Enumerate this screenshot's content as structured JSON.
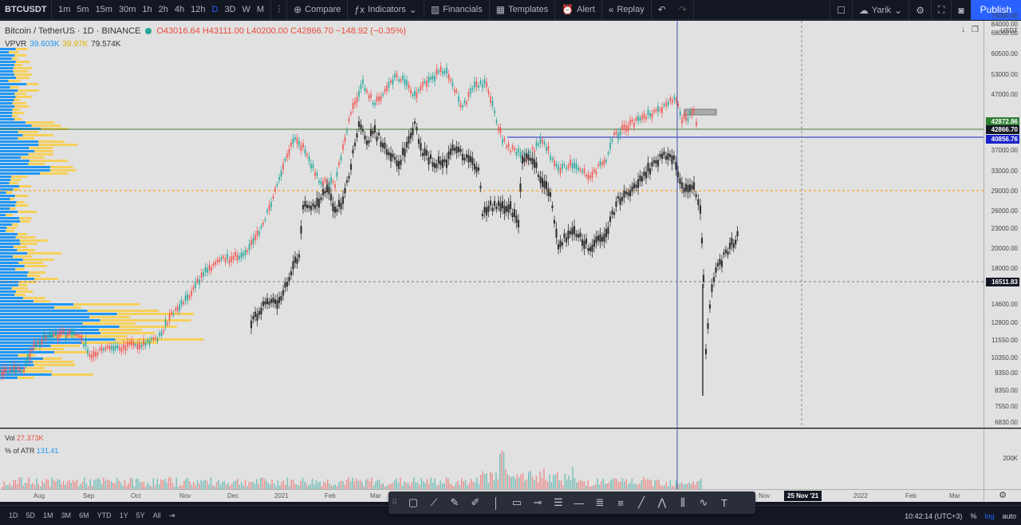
{
  "toolbar": {
    "symbol": "BTCUSDT",
    "intervals": [
      "1m",
      "5m",
      "15m",
      "30m",
      "1h",
      "2h",
      "4h",
      "12h",
      "D",
      "3D",
      "W",
      "M"
    ],
    "active_interval": "D",
    "compare": "Compare",
    "indicators": "Indicators",
    "financials": "Financials",
    "templates": "Templates",
    "alert": "Alert",
    "replay": "Replay",
    "user": "Yarik",
    "publish": "Publish"
  },
  "legend": {
    "title": "Bitcoin / TetherUS · 1D · BINANCE",
    "ohlc": "O43016.64  H43111.00  L40200.00  C42866.70  −148.92 (−0.35%)",
    "vpvr_label": "VPVR",
    "vpvr_a": "39.603K",
    "vpvr_b": "39.97K",
    "vpvr_c": "79.574K"
  },
  "price_axis": {
    "unit": "USDT",
    "top_label": "84000.00",
    "ticks": [
      "76000.00",
      "68000.00",
      "60500.00",
      "53000.00",
      "47000.00",
      "37000.00",
      "33000.00",
      "29000.00",
      "26000.00",
      "23000.00",
      "20000.00",
      "18000.00",
      "14600.00",
      "12800.00",
      "11550.00",
      "10350.00",
      "9350.00",
      "8350.00",
      "7550.00",
      "6830.00"
    ],
    "tags": [
      {
        "text": "42872.86",
        "color": "#2e7d32"
      },
      {
        "text": "42866.70",
        "color": "#131722"
      },
      {
        "text": "40856.76",
        "color": "#1a23c9"
      },
      {
        "text": "16511.83",
        "color": "#131722"
      }
    ]
  },
  "volume": {
    "vol_label": "Vol",
    "vol_value": "27.373K",
    "atr_label": "% of ATR",
    "atr_value": "131.41",
    "axis_label": "200K"
  },
  "time_axis": {
    "labels": [
      "Aug",
      "Sep",
      "Oct",
      "Nov",
      "Dec",
      "2021",
      "Feb",
      "Mar",
      "Nov",
      "2022",
      "Feb",
      "Mar"
    ],
    "current": "25 Nov '21"
  },
  "bottombar": {
    "ranges": [
      "1D",
      "5D",
      "1M",
      "3M",
      "6M",
      "YTD",
      "1Y",
      "5Y",
      "All"
    ],
    "time": "10:42:14 (UTC+3)",
    "percent": "%",
    "log": "log",
    "auto": "auto"
  },
  "colors": {
    "up": "#26a69a",
    "down": "#ef5350",
    "overlay": "#333333",
    "vp_blue": "#2196f3",
    "vp_yellow": "#f6d05a"
  },
  "icons": [
    "crosshair-icon",
    "trend-line-icon",
    "brush-icon",
    "text-icon"
  ]
}
